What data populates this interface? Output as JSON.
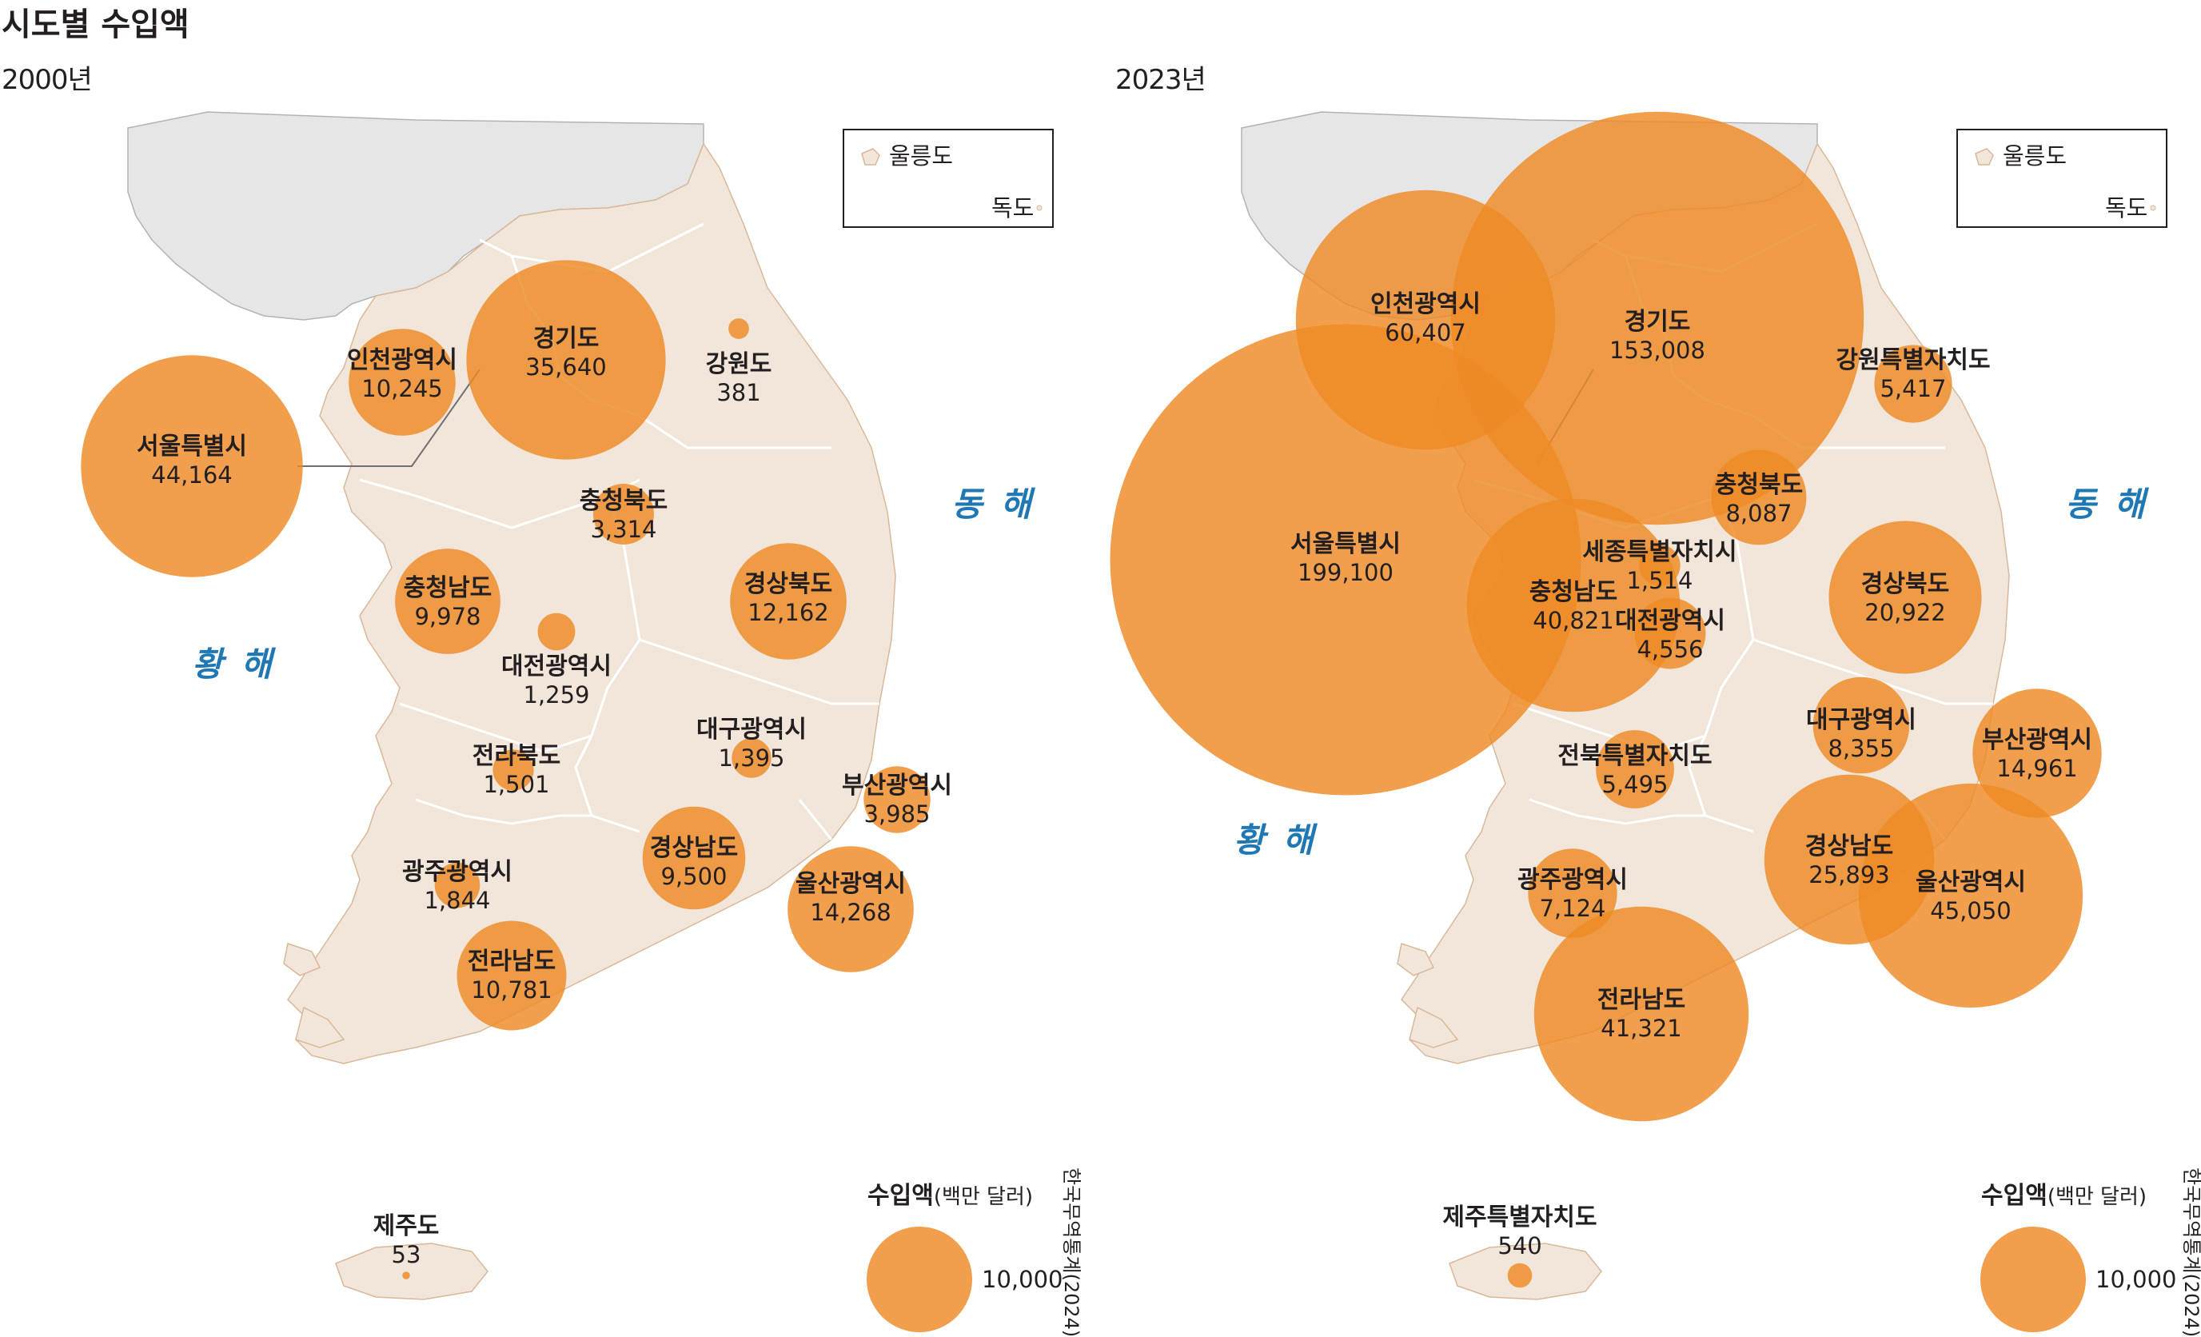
{
  "title": "시도별 수입액",
  "maps": [
    {
      "year": "2000년",
      "sea_east": "동 해",
      "sea_west": "황 해",
      "inset": {
        "ulleung": "울릉도",
        "dokdo": "독도"
      },
      "legend": {
        "title": "수입액",
        "unit": "(백만 달러)",
        "value": "10,000"
      },
      "source": "한국무역통계(2024)",
      "regions": [
        {
          "name": "서울특별시",
          "value": "44,164",
          "amount": 44164
        },
        {
          "name": "인천광역시",
          "value": "10,245",
          "amount": 10245
        },
        {
          "name": "경기도",
          "value": "35,640",
          "amount": 35640
        },
        {
          "name": "강원도",
          "value": "381",
          "amount": 381
        },
        {
          "name": "충청북도",
          "value": "3,314",
          "amount": 3314
        },
        {
          "name": "충청남도",
          "value": "9,978",
          "amount": 9978
        },
        {
          "name": "대전광역시",
          "value": "1,259",
          "amount": 1259
        },
        {
          "name": "경상북도",
          "value": "12,162",
          "amount": 12162
        },
        {
          "name": "대구광역시",
          "value": "1,395",
          "amount": 1395
        },
        {
          "name": "전라북도",
          "value": "1,501",
          "amount": 1501
        },
        {
          "name": "부산광역시",
          "value": "3,985",
          "amount": 3985
        },
        {
          "name": "경상남도",
          "value": "9,500",
          "amount": 9500
        },
        {
          "name": "광주광역시",
          "value": "1,844",
          "amount": 1844
        },
        {
          "name": "울산광역시",
          "value": "14,268",
          "amount": 14268
        },
        {
          "name": "전라남도",
          "value": "10,781",
          "amount": 10781
        },
        {
          "name": "제주도",
          "value": "53",
          "amount": 53
        }
      ]
    },
    {
      "year": "2023년",
      "sea_east": "동 해",
      "sea_west": "황 해",
      "inset": {
        "ulleung": "울릉도",
        "dokdo": "독도"
      },
      "legend": {
        "title": "수입액",
        "unit": "(백만 달러)",
        "value": "10,000"
      },
      "source": "한국무역통계(2024)",
      "regions": [
        {
          "name": "인천광역시",
          "value": "60,407",
          "amount": 60407
        },
        {
          "name": "경기도",
          "value": "153,008",
          "amount": 153008
        },
        {
          "name": "강원특별자치도",
          "value": "5,417",
          "amount": 5417
        },
        {
          "name": "충청북도",
          "value": "8,087",
          "amount": 8087
        },
        {
          "name": "서울특별시",
          "value": "199,100",
          "amount": 199100
        },
        {
          "name": "세종특별자치시",
          "value": "1,514",
          "amount": 1514
        },
        {
          "name": "충청남도",
          "value": "40,821",
          "amount": 40821
        },
        {
          "name": "대전광역시",
          "value": "4,556",
          "amount": 4556
        },
        {
          "name": "경상북도",
          "value": "20,922",
          "amount": 20922
        },
        {
          "name": "대구광역시",
          "value": "8,355",
          "amount": 8355
        },
        {
          "name": "부산광역시",
          "value": "14,961",
          "amount": 14961
        },
        {
          "name": "전북특별자치도",
          "value": "5,495",
          "amount": 5495
        },
        {
          "name": "경상남도",
          "value": "25,893",
          "amount": 25893
        },
        {
          "name": "광주광역시",
          "value": "7,124",
          "amount": 7124
        },
        {
          "name": "울산광역시",
          "value": "45,050",
          "amount": 45050
        },
        {
          "name": "전라남도",
          "value": "41,321",
          "amount": 41321
        },
        {
          "name": "제주특별자치도",
          "value": "540",
          "amount": 540
        }
      ]
    }
  ]
}
